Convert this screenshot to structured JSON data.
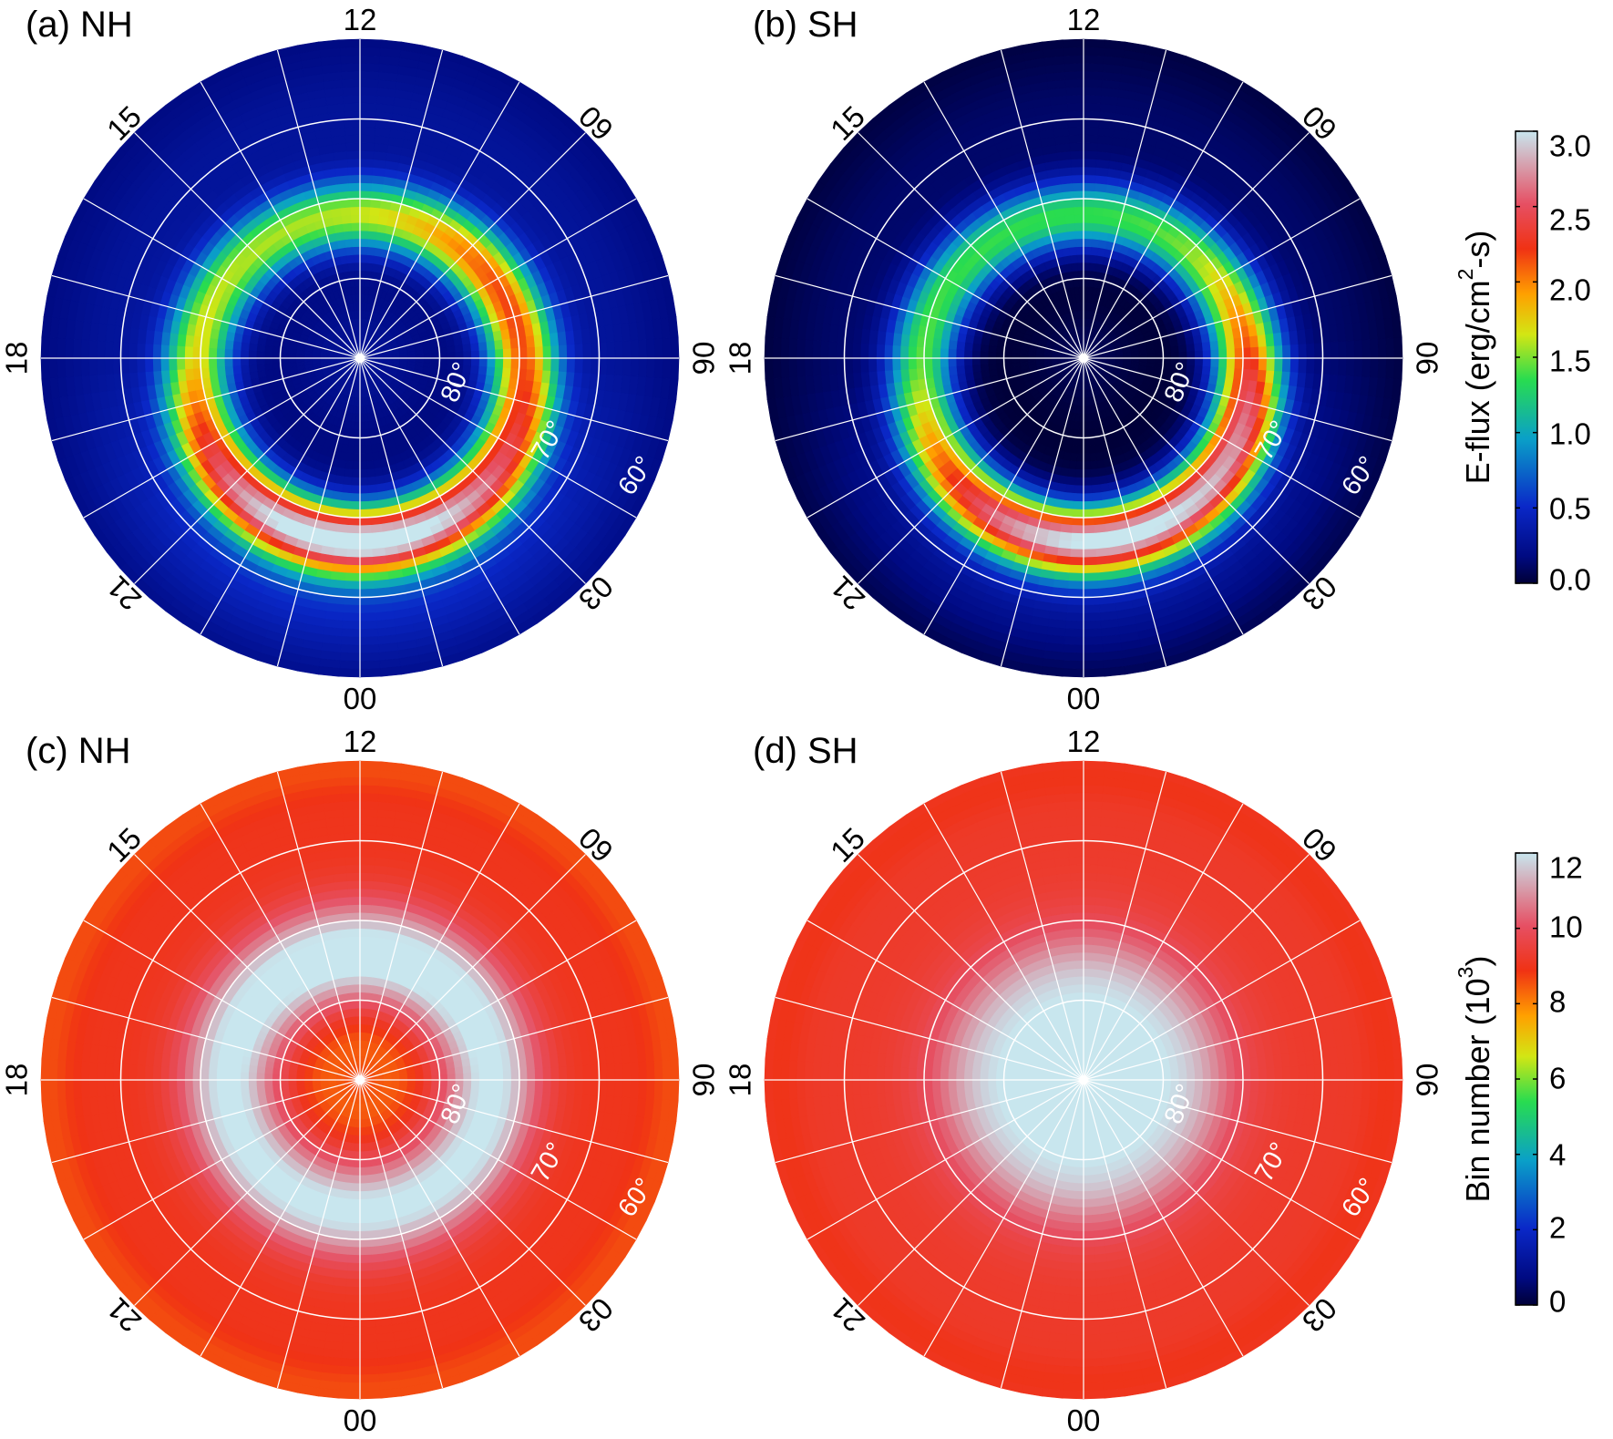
{
  "chart_data": [
    {
      "type": "heatmap",
      "panel_label": "(a) NH",
      "projection": "polar MLT-MLAT",
      "mlt_labels": [
        "12",
        "15",
        "09",
        "18",
        "06",
        "21",
        "03",
        "00"
      ],
      "lat_labels": [
        "80°",
        "70°",
        "60°"
      ],
      "lat_range": [
        50,
        90
      ],
      "grid": true,
      "colorbar": "eflux",
      "feature": "auroral oval, peak ~3.0 near 66° MLAT on nightside 21-03 MLT; ~1.6-2.0 on dawn 06-09 MLT near 72°; ~0.2 at the pole"
    },
    {
      "type": "heatmap",
      "panel_label": "(b) SH",
      "projection": "polar MLT-MLAT",
      "mlt_labels": [
        "12",
        "15",
        "09",
        "18",
        "06",
        "21",
        "03",
        "00"
      ],
      "lat_labels": [
        "80°",
        "70°",
        "60°"
      ],
      "lat_range": [
        50,
        90
      ],
      "grid": true,
      "colorbar": "eflux",
      "feature": "auroral oval, peak ~3.0 near 67° MLAT around 22-02 MLT; ~2.2 on dawn 04-07 MLT near 71°; ~0.1 at the pole"
    },
    {
      "type": "heatmap",
      "panel_label": "(c) NH",
      "projection": "polar MLT-MLAT",
      "mlt_labels": [
        "12",
        "15",
        "09",
        "18",
        "06",
        "21",
        "03",
        "00"
      ],
      "lat_labels": [
        "80°",
        "70°",
        "60°"
      ],
      "lat_range": [
        50,
        90
      ],
      "grid": true,
      "colorbar": "bins",
      "feature": "bin counts ~9-10 (x10^3) at the pole and the outer edge, ~12 in a ring near 70-75° MLAT"
    },
    {
      "type": "heatmap",
      "panel_label": "(d) SH",
      "projection": "polar MLT-MLAT",
      "mlt_labels": [
        "12",
        "15",
        "09",
        "18",
        "06",
        "21",
        "03",
        "00"
      ],
      "lat_labels": [
        "80°",
        "70°",
        "60°"
      ],
      "lat_range": [
        50,
        90
      ],
      "grid": true,
      "colorbar": "bins",
      "feature": "bin counts ~12 (x10^3) poleward of 75° MLAT, ~9 at the outer edge"
    }
  ],
  "colorbars": {
    "eflux": {
      "label_prefix": "E-flux (erg/cm",
      "label_sup": "2",
      "label_suffix": "-s)",
      "range": [
        0,
        3.0
      ],
      "ticks": [
        "0.0",
        "0.5",
        "1.0",
        "1.5",
        "2.0",
        "2.5",
        "3.0"
      ],
      "tick_values": [
        0,
        0.5,
        1.0,
        1.5,
        2.0,
        2.5,
        3.0
      ]
    },
    "bins": {
      "label_prefix": "Bin number (10",
      "label_sup": "3",
      "label_suffix": ")",
      "range": [
        0,
        12
      ],
      "ticks": [
        "0",
        "2",
        "4",
        "6",
        "8",
        "10",
        "12"
      ],
      "tick_values": [
        0,
        2,
        4,
        6,
        8,
        10,
        12
      ]
    }
  },
  "colormap": {
    "stops": [
      0,
      0.06,
      0.17,
      0.32,
      0.45,
      0.55,
      0.64,
      0.74,
      0.84,
      1.0
    ],
    "colors": [
      "#000037",
      "#000a82",
      "#0a28c8",
      "#0aa0c8",
      "#28dc50",
      "#d2e614",
      "#ffa000",
      "#f03214",
      "#e65064",
      "#c8e6ee"
    ]
  }
}
